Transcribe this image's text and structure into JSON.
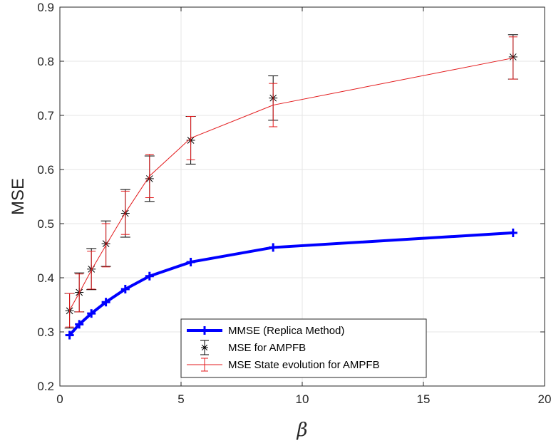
{
  "chart_data": {
    "type": "line",
    "xlabel": "β",
    "ylabel": "MSE",
    "xlim": [
      0,
      20
    ],
    "ylim": [
      0.2,
      0.9
    ],
    "xticks": [
      0,
      5,
      10,
      15,
      20
    ],
    "yticks": [
      0.2,
      0.3,
      0.4,
      0.5,
      0.6,
      0.7,
      0.8,
      0.9
    ],
    "xtick_labels": [
      "0",
      "5",
      "10",
      "15",
      "20"
    ],
    "ytick_labels": [
      "0.2",
      "0.3",
      "0.4",
      "0.5",
      "0.6",
      "0.7",
      "0.8",
      "0.9"
    ],
    "grid": true,
    "legend_position": "bottom-center",
    "series": [
      {
        "name": "MMSE (Replica Method)",
        "color": "#0000ff",
        "marker": "plus",
        "x": [
          0.4,
          0.8,
          1.3,
          1.9,
          2.7,
          3.7,
          5.4,
          8.8,
          18.7
        ],
        "y": [
          0.294,
          0.314,
          0.334,
          0.355,
          0.379,
          0.403,
          0.429,
          0.456,
          0.483
        ]
      },
      {
        "name": "MSE for AMPFB",
        "color": "#000000",
        "marker": "asterisk",
        "x": [
          0.4,
          0.8,
          1.3,
          1.9,
          2.7,
          3.7,
          5.4,
          8.8,
          18.7
        ],
        "y": [
          0.339,
          0.373,
          0.416,
          0.463,
          0.519,
          0.583,
          0.654,
          0.732,
          0.808
        ],
        "err": [
          0.032,
          0.036,
          0.038,
          0.042,
          0.044,
          0.042,
          0.044,
          0.041,
          0.041
        ]
      },
      {
        "name": "MSE State evolution for AMPFB",
        "color": "#e31a1c",
        "marker": "errorbar",
        "x": [
          0.4,
          0.8,
          1.3,
          1.9,
          2.7,
          3.7,
          5.4,
          8.8,
          18.7
        ],
        "y": [
          0.34,
          0.372,
          0.414,
          0.46,
          0.52,
          0.588,
          0.658,
          0.719,
          0.806
        ],
        "err": [
          0.031,
          0.035,
          0.035,
          0.04,
          0.04,
          0.04,
          0.04,
          0.04,
          0.039
        ]
      }
    ]
  }
}
